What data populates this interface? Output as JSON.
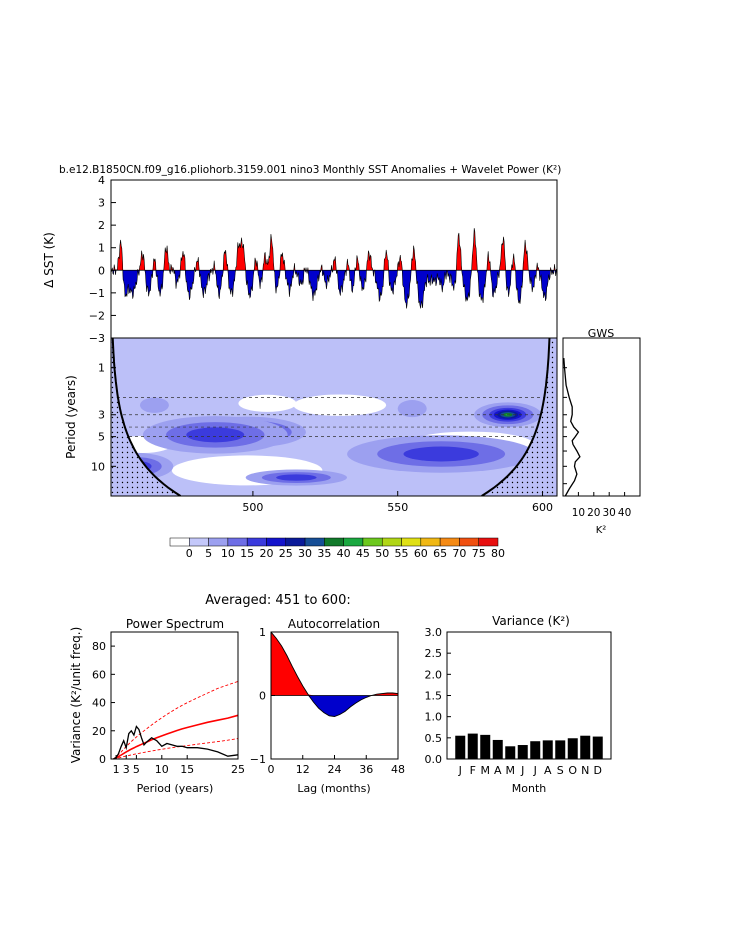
{
  "main_title": "b.e12.B1850CN.f09_g16.pliohorb.3159.001 nino3 Monthly SST Anomalies + Wavelet Power (K²)",
  "averaged_title": "Averaged: 451 to 600:",
  "colors": {
    "positive": "#ff0000",
    "negative": "#0000cc",
    "bar": "#000000",
    "background_power": "#bcc0f8"
  },
  "chart_data": [
    {
      "id": "sst",
      "type": "area",
      "ylabel": "Δ SST (K)",
      "ylim": [
        -3,
        4
      ],
      "yticks": [
        4,
        3,
        2,
        1,
        0,
        -1,
        -2,
        -3
      ],
      "ytick_labels": [
        "4",
        "3",
        "2",
        "1",
        "0",
        "−1",
        "−2",
        "−3"
      ],
      "xlim": [
        451,
        605
      ],
      "warm_events": [
        [
          454.5,
          2.0
        ],
        [
          462,
          0.9
        ],
        [
          466,
          0.8
        ],
        [
          470,
          1.2
        ],
        [
          472.5,
          0.9
        ],
        [
          476,
          1.0
        ],
        [
          481,
          0.6
        ],
        [
          487,
          0.8
        ],
        [
          490.5,
          1.1
        ],
        [
          495,
          1.1
        ],
        [
          496.5,
          1.2
        ],
        [
          501,
          0.8
        ],
        [
          504,
          1.1
        ],
        [
          506.5,
          1.7
        ],
        [
          510,
          0.9
        ],
        [
          514,
          0.6
        ],
        [
          518,
          0.5
        ],
        [
          524,
          0.5
        ],
        [
          528.5,
          0.8
        ],
        [
          533,
          0.9
        ],
        [
          536,
          0.8
        ],
        [
          540,
          0.9
        ],
        [
          546,
          1.2
        ],
        [
          551,
          0.8
        ],
        [
          555.5,
          1.1
        ],
        [
          562,
          0.6
        ],
        [
          566.5,
          0.8
        ],
        [
          571,
          2.2
        ],
        [
          576.5,
          1.8
        ],
        [
          581.5,
          1.1
        ],
        [
          586.5,
          1.8
        ],
        [
          590,
          1.0
        ],
        [
          594,
          1.4
        ],
        [
          598,
          0.7
        ],
        [
          602,
          0.4
        ]
      ],
      "cold_events": [
        [
          455.5,
          -1.3
        ],
        [
          458.5,
          -1.0
        ],
        [
          464,
          -1.0
        ],
        [
          468,
          -1.0
        ],
        [
          473,
          -0.9
        ],
        [
          478,
          -1.1
        ],
        [
          483,
          -1.0
        ],
        [
          488,
          -1.2
        ],
        [
          492.5,
          -1.0
        ],
        [
          499,
          -1.1
        ],
        [
          503,
          -0.8
        ],
        [
          508,
          -0.9
        ],
        [
          513,
          -1.0
        ],
        [
          517,
          -0.7
        ],
        [
          521,
          -1.1
        ],
        [
          525,
          -0.7
        ],
        [
          530,
          -1.0
        ],
        [
          534,
          -1.0
        ],
        [
          538,
          -0.8
        ],
        [
          544,
          -1.2
        ],
        [
          548,
          -0.9
        ],
        [
          553,
          -1.5
        ],
        [
          558,
          -1.6
        ],
        [
          562,
          -1.0
        ],
        [
          566,
          -1.1
        ],
        [
          570,
          -1.0
        ],
        [
          574,
          -1.3
        ],
        [
          579,
          -1.3
        ],
        [
          583,
          -1.1
        ],
        [
          588,
          -1.1
        ],
        [
          592,
          -1.4
        ],
        [
          597,
          -0.9
        ],
        [
          601,
          -1.3
        ]
      ]
    },
    {
      "id": "wavelet",
      "type": "heatmap",
      "ylabel": "Period (years)",
      "yticks": [
        1,
        3,
        5,
        10
      ],
      "ytick_labels": [
        "1",
        "3",
        "5",
        "10"
      ],
      "period_range": [
        0.5,
        20
      ],
      "xlim": [
        451,
        605
      ],
      "xticks": [
        500,
        550,
        600
      ],
      "xtick_labels": [
        "500",
        "550",
        "600"
      ],
      "dashed_periods": [
        2,
        3,
        4,
        5
      ],
      "power_blobs": [
        {
          "x": 498,
          "period": 4.5,
          "dx": 14,
          "dlog": 0.25,
          "level": "peak"
        },
        {
          "x": 487,
          "period": 4.8,
          "dx": 20,
          "dlog": 0.35,
          "level": "mid"
        },
        {
          "x": 565,
          "period": 8.5,
          "dx": 14,
          "dlog": 0.13,
          "level": "peak"
        },
        {
          "x": 565,
          "period": 7.5,
          "dx": 26,
          "dlog": 0.35,
          "level": "mid"
        },
        {
          "x": 588,
          "period": 3.0,
          "dx": 8,
          "dlog": 0.2,
          "level": "peak"
        },
        {
          "x": 515,
          "period": 13,
          "dx": 14,
          "dlog": 0.15,
          "level": "mid"
        },
        {
          "x": 460,
          "period": 10,
          "dx": 10,
          "dlog": 0.25,
          "level": "mid"
        },
        {
          "x": 600,
          "period": 9,
          "dx": 8,
          "dlog": 0.25,
          "level": "mid"
        },
        {
          "x": 555,
          "period": 2.6,
          "dx": 5,
          "dlog": 0.2,
          "level": "low"
        },
        {
          "x": 466,
          "period": 2.4,
          "dx": 5,
          "dlog": 0.18,
          "level": "low"
        }
      ]
    },
    {
      "id": "gws",
      "type": "line",
      "title": "GWS",
      "xlabel": "K²",
      "xticks": [
        10,
        20,
        30,
        40
      ],
      "xtick_labels": [
        "10",
        "20",
        "30",
        "40"
      ],
      "xlim": [
        0,
        50
      ],
      "period_range": [
        0.5,
        20
      ],
      "period": [
        0.8,
        1,
        1.5,
        2,
        2.5,
        3,
        3.5,
        4,
        4.5,
        5,
        5.5,
        6,
        7,
        8,
        9,
        10,
        12,
        14,
        17,
        20
      ],
      "power": [
        0.5,
        1,
        2,
        4,
        6,
        6,
        5,
        7,
        10,
        8,
        6,
        6.5,
        9,
        11,
        8,
        7.5,
        9,
        7.5,
        4,
        1.5
      ]
    },
    {
      "id": "spectrum",
      "type": "line",
      "title": "Power Spectrum",
      "ylabel": "Variance (K²/unit freq.)",
      "xlabel": "Period (years)",
      "xlim": [
        0,
        25
      ],
      "ylim": [
        0,
        90
      ],
      "xticks": [
        1,
        3,
        5,
        10,
        15,
        25
      ],
      "xtick_labels": [
        "1",
        "3",
        "5",
        "10",
        "15",
        "25"
      ],
      "yticks": [
        0,
        20,
        40,
        60,
        80
      ],
      "ytick_labels": [
        "0",
        "20",
        "40",
        "60",
        "80"
      ],
      "x": [
        0.5,
        1,
        1.5,
        2,
        2.5,
        3,
        3.5,
        4,
        4.5,
        5,
        5.5,
        6,
        6.5,
        7,
        8,
        9,
        10,
        11,
        12,
        13,
        14,
        15,
        17,
        19,
        21,
        23,
        25
      ],
      "power": [
        0,
        1,
        4,
        9,
        13,
        8,
        18,
        20,
        17,
        23,
        21,
        15,
        10,
        12,
        15,
        13,
        9,
        11,
        10,
        9,
        9,
        8,
        8,
        7,
        5,
        2,
        3
      ],
      "red_noise": [
        0,
        0.8,
        1.7,
        2.8,
        4,
        5,
        6,
        7,
        7.9,
        8.8,
        9.6,
        10.4,
        11.2,
        12,
        13.6,
        15,
        16.4,
        17.7,
        19,
        20.2,
        21.3,
        22.3,
        24.2,
        26,
        27.5,
        29,
        31
      ],
      "lower_95": [
        0,
        0.3,
        0.8,
        1.2,
        1.7,
        2.1,
        2.5,
        2.9,
        3.3,
        3.7,
        4,
        4.4,
        4.7,
        5,
        5.7,
        6.3,
        6.9,
        7.5,
        8,
        8.5,
        9,
        9.5,
        10.5,
        11.4,
        12.3,
        13.3,
        14.5
      ],
      "upper_95": [
        0,
        1.5,
        3.1,
        5,
        7,
        8.8,
        10.6,
        12.4,
        14,
        15.6,
        17.1,
        18.6,
        20,
        21.4,
        24.1,
        26.7,
        29.2,
        31.6,
        33.9,
        36,
        38,
        39.9,
        43.4,
        46.7,
        50,
        52.5,
        55
      ]
    },
    {
      "id": "autocorr",
      "type": "area",
      "title": "Autocorrelation",
      "xlabel": "Lag (months)",
      "xlim": [
        0,
        48
      ],
      "ylim": [
        -1,
        1
      ],
      "xticks": [
        0,
        12,
        24,
        36,
        48
      ],
      "xtick_labels": [
        "0",
        "12",
        "24",
        "36",
        "48"
      ],
      "yticks": [
        1,
        0,
        -1
      ],
      "ytick_labels": [
        "1",
        "0",
        "−1"
      ],
      "lag": [
        0,
        2,
        4,
        6,
        8,
        10,
        12,
        14,
        16,
        18,
        20,
        22,
        24,
        26,
        28,
        30,
        32,
        34,
        36,
        38,
        40,
        42,
        44,
        46,
        48
      ],
      "acf": [
        1.0,
        0.9,
        0.78,
        0.63,
        0.46,
        0.3,
        0.15,
        0.02,
        -0.1,
        -0.2,
        -0.27,
        -0.32,
        -0.33,
        -0.3,
        -0.25,
        -0.18,
        -0.12,
        -0.07,
        -0.03,
        0.0,
        0.02,
        0.03,
        0.04,
        0.04,
        0.03
      ]
    },
    {
      "id": "variance",
      "type": "bar",
      "title": "Variance (K²)",
      "xlabel": "Month",
      "ylim": [
        0,
        3
      ],
      "yticks": [
        0,
        0.5,
        1,
        1.5,
        2,
        2.5,
        3
      ],
      "ytick_labels": [
        "0.0",
        "0.5",
        "1.0",
        "1.5",
        "2.0",
        "2.5",
        "3.0"
      ],
      "categories": [
        "J",
        "F",
        "M",
        "A",
        "M",
        "J",
        "J",
        "A",
        "S",
        "O",
        "N",
        "D"
      ],
      "values": [
        0.55,
        0.6,
        0.57,
        0.45,
        0.3,
        0.33,
        0.42,
        0.44,
        0.44,
        0.49,
        0.55,
        0.53
      ]
    }
  ],
  "colorbar": {
    "labels": [
      "0",
      "5",
      "10",
      "15",
      "20",
      "25",
      "30",
      "35",
      "40",
      "45",
      "50",
      "55",
      "60",
      "65",
      "70",
      "75",
      "80"
    ],
    "colors": [
      "#ffffff",
      "#c4c8fa",
      "#9ca0f0",
      "#6e6ee6",
      "#3b3bdd",
      "#1414cc",
      "#0a1a99",
      "#164e96",
      "#117a2a",
      "#1aa840",
      "#6cc81e",
      "#b0d616",
      "#e0e014",
      "#f0b814",
      "#f58a14",
      "#f05010",
      "#e81010"
    ]
  }
}
